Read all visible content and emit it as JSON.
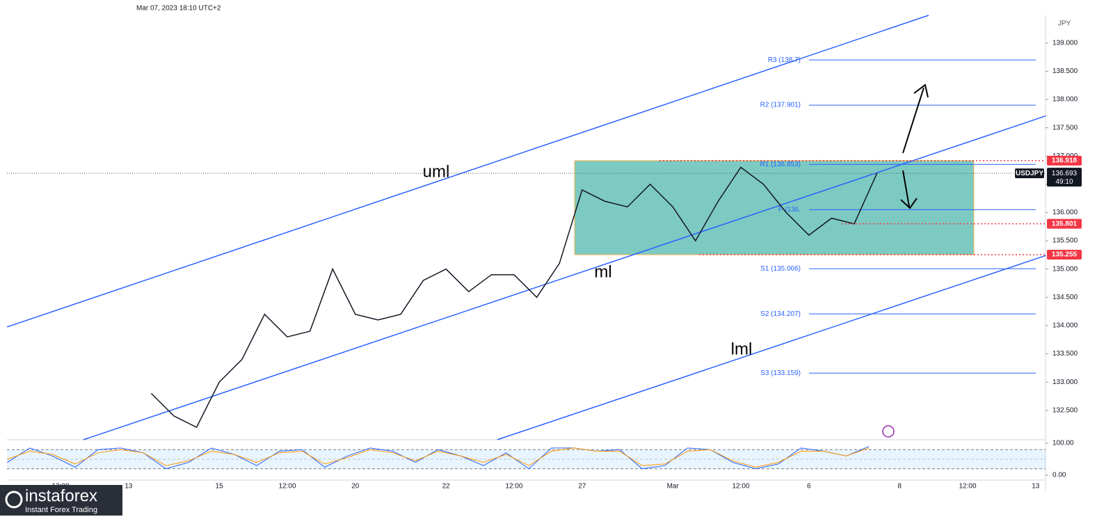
{
  "chart_data": {
    "type": "line",
    "header": "Mar 07, 2023 18:10 UTC+2",
    "currency": "JPY",
    "categories": [
      null,
      null,
      "12:00",
      null,
      null,
      "13",
      null,
      null,
      null,
      "15",
      null,
      null,
      "12:00",
      null,
      null,
      "20",
      null,
      null,
      null,
      "22",
      null,
      null,
      "12:00",
      null,
      null,
      "27",
      null,
      null,
      null,
      "Mar",
      null,
      null,
      "12:00",
      null,
      null,
      "6",
      null,
      null,
      null,
      "8",
      null,
      null,
      "12:00",
      null,
      null,
      "13"
    ],
    "series": [
      {
        "name": "USDJPY",
        "color": "#131722",
        "values": [
          null,
          null,
          null,
          null,
          null,
          null,
          132.8,
          132.4,
          132.2,
          133.0,
          133.4,
          134.2,
          133.8,
          133.9,
          135.0,
          134.2,
          134.1,
          134.2,
          134.8,
          135.0,
          134.6,
          134.9,
          134.9,
          134.5,
          135.1,
          136.4,
          136.2,
          136.1,
          136.5,
          136.1,
          135.5,
          136.2,
          136.8,
          136.5,
          136.0,
          135.6,
          135.9,
          135.8,
          136.693,
          null,
          null,
          null,
          null,
          null,
          null,
          null
        ]
      }
    ],
    "ylim": [
      131.98,
      139.49
    ],
    "yticks": [
      {
        "value": 132.5,
        "label": "132.500"
      },
      {
        "value": 133,
        "label": "133.000"
      },
      {
        "value": 133.5,
        "label": "133.500"
      },
      {
        "value": 134,
        "label": "134.000"
      },
      {
        "value": 134.5,
        "label": "134.500"
      },
      {
        "value": 135,
        "label": "135.000"
      },
      {
        "value": 135.5,
        "label": "135.500"
      },
      {
        "value": 136,
        "label": "136.000"
      },
      {
        "value": 136.5,
        "label": "136.500"
      },
      {
        "value": 137,
        "label": "137.000"
      },
      {
        "value": 137.5,
        "label": "137.500"
      },
      {
        "value": 138,
        "label": "138.000"
      },
      {
        "value": 138.5,
        "label": "138.500"
      },
      {
        "value": 139,
        "label": "139.000"
      }
    ],
    "last_price": 136.693,
    "countdown": "49:10",
    "levels": [
      {
        "label": "R3 (138.7)",
        "value": 138.7
      },
      {
        "label": "R2 (137.901)",
        "value": 137.901
      },
      {
        "label": "R1 (136.853)",
        "value": 136.853
      },
      {
        "label": "P (136.",
        "value": 136.05
      },
      {
        "label": "S1 (135.006)",
        "value": 135.006
      },
      {
        "label": "S2 (134.207)",
        "value": 134.207
      },
      {
        "label": "S3 (133.159)",
        "value": 133.159
      }
    ],
    "marked_levels": [
      136.918,
      135.801,
      135.255
    ],
    "range_box": {
      "low": 135.255,
      "high": 136.918
    },
    "channels": [
      {
        "name": "uml",
        "points": [
          [
            -0.36,
            133.975
          ],
          [
            40.28,
            139.49
          ]
        ]
      },
      {
        "name": "ml",
        "points": [
          [
            3.01,
            131.98
          ],
          [
            45.45,
            137.71
          ]
        ]
      },
      {
        "name": "lml",
        "points": [
          [
            21.26,
            131.98
          ],
          [
            45.45,
            135.24
          ]
        ]
      }
    ],
    "rsi": {
      "ylim": [
        -10.9,
        110.9
      ],
      "yticks": [
        {
          "value": 100,
          "label": "100.00"
        },
        {
          "value": 0,
          "label": "0.00"
        }
      ],
      "bands": [
        80,
        50,
        20
      ],
      "series": [
        {
          "color": "#2962ff",
          "values": [
            40,
            85,
            60,
            25,
            80,
            85,
            70,
            20,
            40,
            85,
            65,
            30,
            75,
            80,
            25,
            60,
            85,
            75,
            40,
            80,
            60,
            30,
            70,
            20,
            85,
            85,
            75,
            80,
            20,
            30,
            85,
            80,
            40,
            20,
            35,
            85,
            75,
            60,
            90,
            null,
            null,
            null,
            null,
            null,
            null,
            null
          ]
        },
        {
          "color": "#ff9800",
          "values": [
            50,
            75,
            65,
            35,
            70,
            80,
            70,
            30,
            45,
            75,
            65,
            40,
            70,
            75,
            35,
            55,
            80,
            70,
            45,
            75,
            60,
            40,
            65,
            30,
            75,
            85,
            75,
            75,
            30,
            35,
            75,
            80,
            45,
            25,
            40,
            75,
            75,
            60,
            85,
            null,
            null,
            null,
            null,
            null,
            null,
            null
          ]
        }
      ]
    },
    "watermark": {
      "brand": "instaforex",
      "tagline": "Instant Forex Trading"
    }
  }
}
